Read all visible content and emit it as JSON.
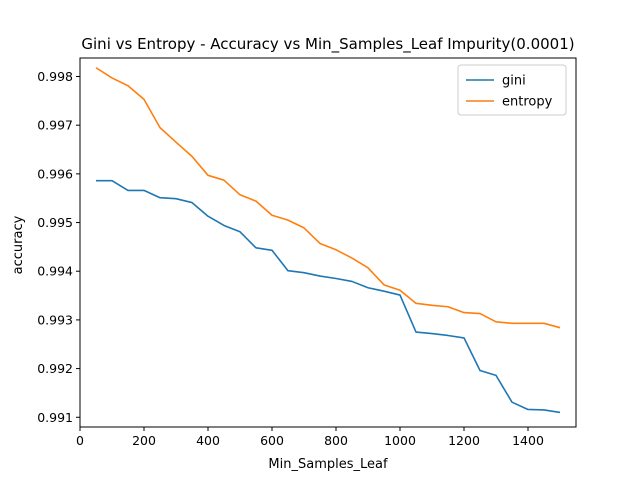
{
  "chart_data": {
    "type": "line",
    "title": "Gini vs Entropy - Accuracy vs Min_Samples_Leaf Impurity(0.0001)",
    "xlabel": "Min_Samples_Leaf",
    "ylabel": "accuracy",
    "xlim": [
      0,
      1550
    ],
    "ylim": [
      0.9908,
      0.99838
    ],
    "xticks": [
      0,
      200,
      400,
      600,
      800,
      1000,
      1200,
      1400
    ],
    "yticks": [
      0.991,
      0.992,
      0.993,
      0.994,
      0.995,
      0.996,
      0.997,
      0.998
    ],
    "grid": false,
    "legend_position": "top-right",
    "x": [
      50,
      100,
      150,
      200,
      250,
      300,
      350,
      400,
      450,
      500,
      550,
      600,
      650,
      700,
      750,
      800,
      850,
      900,
      950,
      1000,
      1050,
      1100,
      1150,
      1200,
      1250,
      1300,
      1350,
      1400,
      1450,
      1500
    ],
    "series": [
      {
        "name": "gini",
        "color": "#1f77b4",
        "values": [
          0.99586,
          0.99586,
          0.99566,
          0.99566,
          0.99551,
          0.99549,
          0.99541,
          0.99513,
          0.99494,
          0.99481,
          0.99448,
          0.99443,
          0.99401,
          0.99397,
          0.9939,
          0.99385,
          0.99379,
          0.99366,
          0.99359,
          0.99351,
          0.99275,
          0.99272,
          0.99268,
          0.99263,
          0.99196,
          0.99186,
          0.99131,
          0.99116,
          0.99115,
          0.9911
        ]
      },
      {
        "name": "entropy",
        "color": "#ff7f0e",
        "values": [
          0.99818,
          0.99797,
          0.99781,
          0.99753,
          0.99695,
          0.99665,
          0.99636,
          0.99597,
          0.99587,
          0.99557,
          0.99544,
          0.99515,
          0.99505,
          0.99489,
          0.99457,
          0.99444,
          0.99427,
          0.99407,
          0.99372,
          0.99361,
          0.99334,
          0.9933,
          0.99327,
          0.99315,
          0.99313,
          0.99296,
          0.99293,
          0.99293,
          0.99293,
          0.99284
        ]
      }
    ]
  }
}
